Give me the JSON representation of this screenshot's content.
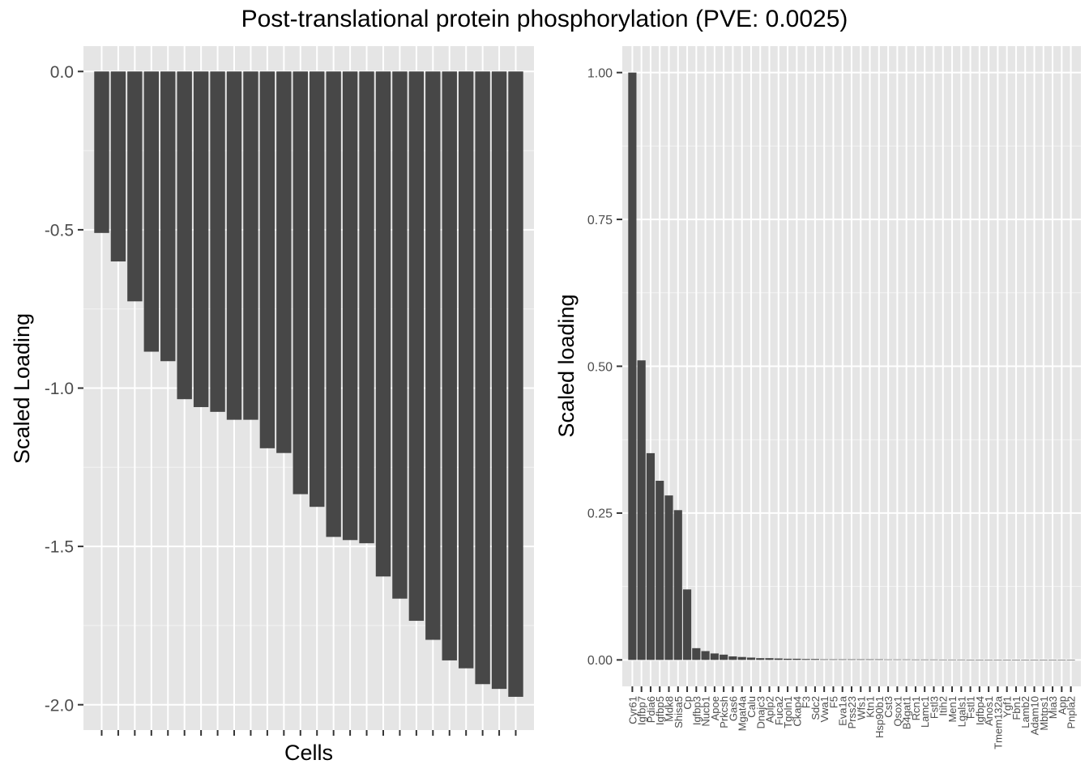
{
  "title": "Post-translational protein phosphorylation (PVE: 0.0025)",
  "colors": {
    "panel_bg": "#e5e5e5",
    "grid_major": "#ffffff",
    "bar_fill": "#474747",
    "tick_text": "#4d4d4d",
    "axis_title": "#000000"
  },
  "chart_data": [
    {
      "type": "bar",
      "xlabel": "Cells",
      "ylabel": "Scaled Loading",
      "ylim": [
        -2.08,
        0.08
      ],
      "yticks": [
        0.0,
        -0.5,
        -1.0,
        -1.5,
        -2.0
      ],
      "ytick_labels": [
        "0.0",
        "-0.5",
        "-1.0",
        "-1.5",
        "-2.0"
      ],
      "grid": true,
      "x_tick_labels_visible": false,
      "values": [
        -0.51,
        -0.6,
        -0.726,
        -0.885,
        -0.915,
        -1.035,
        -1.06,
        -1.075,
        -1.1,
        -1.1,
        -1.19,
        -1.205,
        -1.335,
        -1.375,
        -1.47,
        -1.48,
        -1.49,
        -1.595,
        -1.665,
        -1.735,
        -1.795,
        -1.86,
        -1.885,
        -1.935,
        -1.95,
        -1.975
      ]
    },
    {
      "type": "bar",
      "xlabel": "",
      "ylabel": "Scaled loading",
      "ylim": [
        -0.045,
        1.045
      ],
      "yticks": [
        0.0,
        0.25,
        0.5,
        0.75,
        1.0
      ],
      "ytick_labels": [
        "0.00",
        "0.25",
        "0.50",
        "0.75",
        "1.00"
      ],
      "grid": true,
      "categories": [
        "Cyr61",
        "Igfbp7",
        "Pdia6",
        "Igfbp5",
        "Mdk8",
        "Shisa5",
        "Cp",
        "Igfbp3",
        "Nucb1",
        "Apoe",
        "Prkcsh",
        "Gas6",
        "Mgat4a",
        "Calu",
        "Dnajc3",
        "Aplp2",
        "Fuca2",
        "Tgoln1",
        "Ckap4",
        "F3",
        "Sdc2",
        "Vwa1",
        "F5",
        "Eva1a",
        "Prss23",
        "Wfs1",
        "Ktn1",
        "Hsp90b1",
        "Cst3",
        "Qsox1",
        "B4gat1",
        "Rcn1",
        "Lamc1",
        "Fstl3",
        "Itih2",
        "Men1",
        "Lgals1",
        "Fstl1",
        "Igfbp4",
        "Anos1",
        "Tmem132a",
        "Ygf1",
        "Fbn1",
        "Lamb2",
        "Adam10",
        "Mbtps1",
        "Mia3",
        "App",
        "Pnpla2"
      ],
      "values": [
        1.0,
        0.51,
        0.352,
        0.305,
        0.28,
        0.255,
        0.12,
        0.02,
        0.015,
        0.011,
        0.009,
        0.006,
        0.005,
        0.004,
        0.003,
        0.003,
        0.0025,
        0.002,
        0.002,
        0.0015,
        0.0015,
        0.001,
        0.001,
        0.001,
        0.001,
        0.001,
        0.001,
        0.001,
        0.0008,
        0.0008,
        0.0008,
        0.0007,
        0.0007,
        0.0007,
        0.0006,
        0.0006,
        0.0006,
        0.0005,
        0.0005,
        0.0005,
        0.0005,
        0.0004,
        0.0004,
        0.0004,
        0.0003,
        0.0003,
        0.0003,
        0.0002,
        0.0002
      ]
    }
  ]
}
